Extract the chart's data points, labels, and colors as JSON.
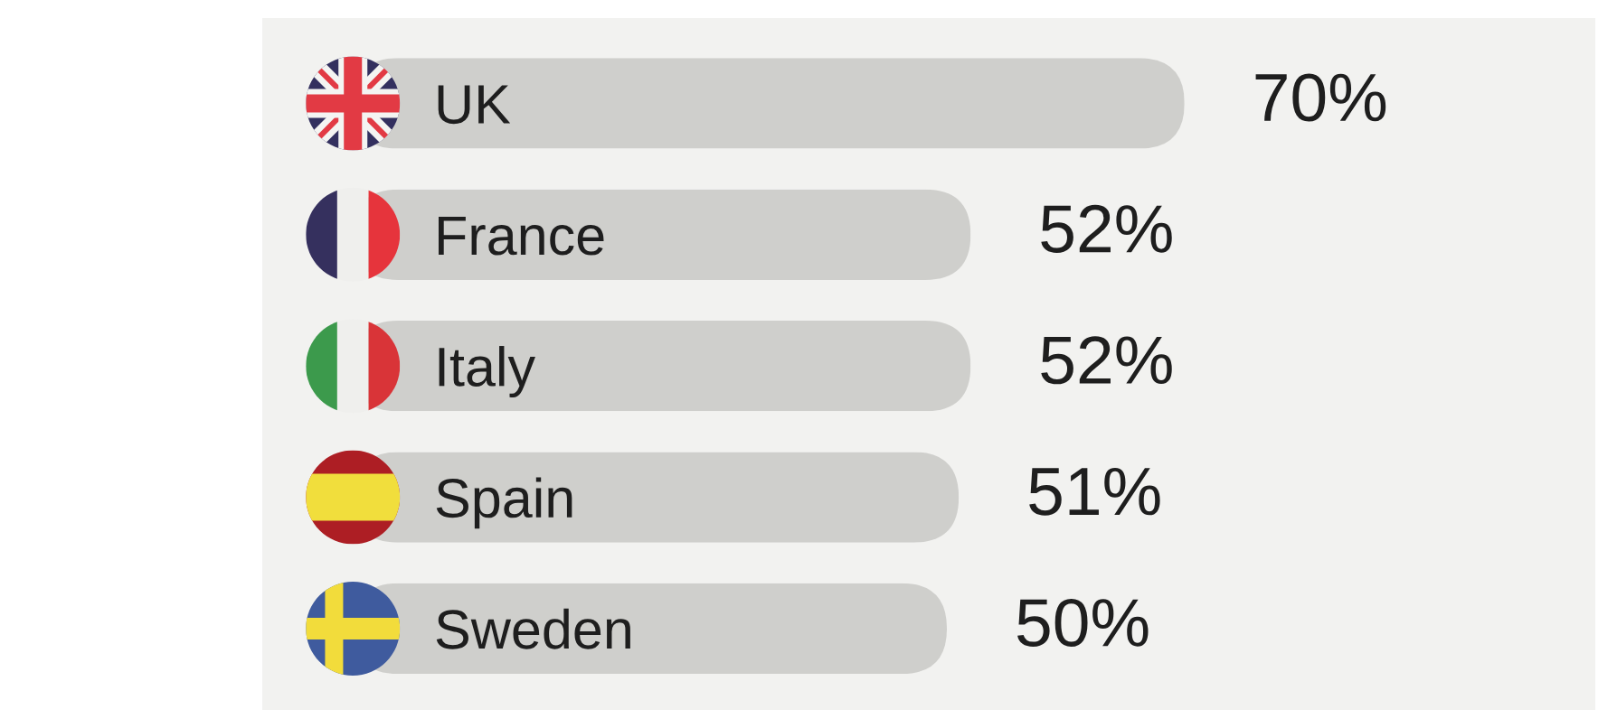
{
  "chart_data": {
    "type": "bar",
    "orientation": "horizontal",
    "categories": [
      "UK",
      "France",
      "Italy",
      "Spain",
      "Sweden"
    ],
    "values": [
      70,
      52,
      52,
      51,
      50
    ],
    "value_labels": [
      "70%",
      "52%",
      "52%",
      "51%",
      "50%"
    ],
    "color": "#cfcfcc",
    "tick_labels": "y"
  }
}
